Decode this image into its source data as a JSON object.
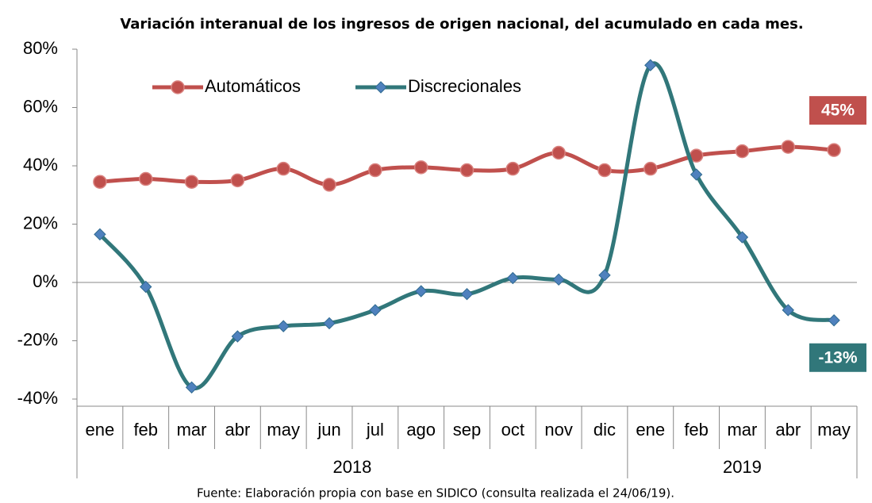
{
  "chart_data": {
    "type": "line",
    "title": "Variación interanual de los ingresos de origen nacional, del acumulado en cada mes.",
    "source": "Fuente: Elaboración propia con base en SIDICO (consulta realizada el 24/06/19).",
    "categories": [
      "ene",
      "feb",
      "mar",
      "abr",
      "may",
      "jun",
      "jul",
      "ago",
      "sep",
      "oct",
      "nov",
      "dic",
      "ene",
      "feb",
      "mar",
      "abr",
      "may"
    ],
    "groups": [
      {
        "label": "2018",
        "span": 12
      },
      {
        "label": "2019",
        "span": 5
      }
    ],
    "series": [
      {
        "name": "Automáticos",
        "color": "#c0504d",
        "marker": "circle",
        "values": [
          34.5,
          35.5,
          34.5,
          35,
          39,
          33.5,
          38.5,
          39.5,
          38.5,
          39,
          44.5,
          38.5,
          39,
          43.5,
          45,
          46.5,
          45.4
        ],
        "value_labels": [
          null,
          null,
          null,
          null,
          null,
          null,
          null,
          null,
          null,
          null,
          null,
          null,
          null,
          null,
          null,
          null,
          "45%"
        ]
      },
      {
        "name": "Discrecionales",
        "color": "#31777a",
        "marker": "diamond",
        "values": [
          16.5,
          -1.5,
          -36,
          -18.5,
          -15,
          -14,
          -9.5,
          -3,
          -4,
          1.5,
          1,
          2.5,
          74.5,
          37,
          15.5,
          -9.5,
          -13
        ],
        "value_labels": [
          null,
          null,
          null,
          null,
          null,
          null,
          null,
          null,
          null,
          null,
          null,
          null,
          null,
          null,
          null,
          null,
          "-13%"
        ]
      }
    ],
    "ylim": [
      -40,
      80
    ],
    "yticks": [
      {
        "value": -40,
        "label": "-40%"
      },
      {
        "value": -20,
        "label": "-20%"
      },
      {
        "value": 0,
        "label": "0%"
      },
      {
        "value": 20,
        "label": "20%"
      },
      {
        "value": 40,
        "label": "40%"
      },
      {
        "value": 60,
        "label": "60%"
      },
      {
        "value": 80,
        "label": "80%"
      }
    ],
    "legend": "top-left"
  }
}
